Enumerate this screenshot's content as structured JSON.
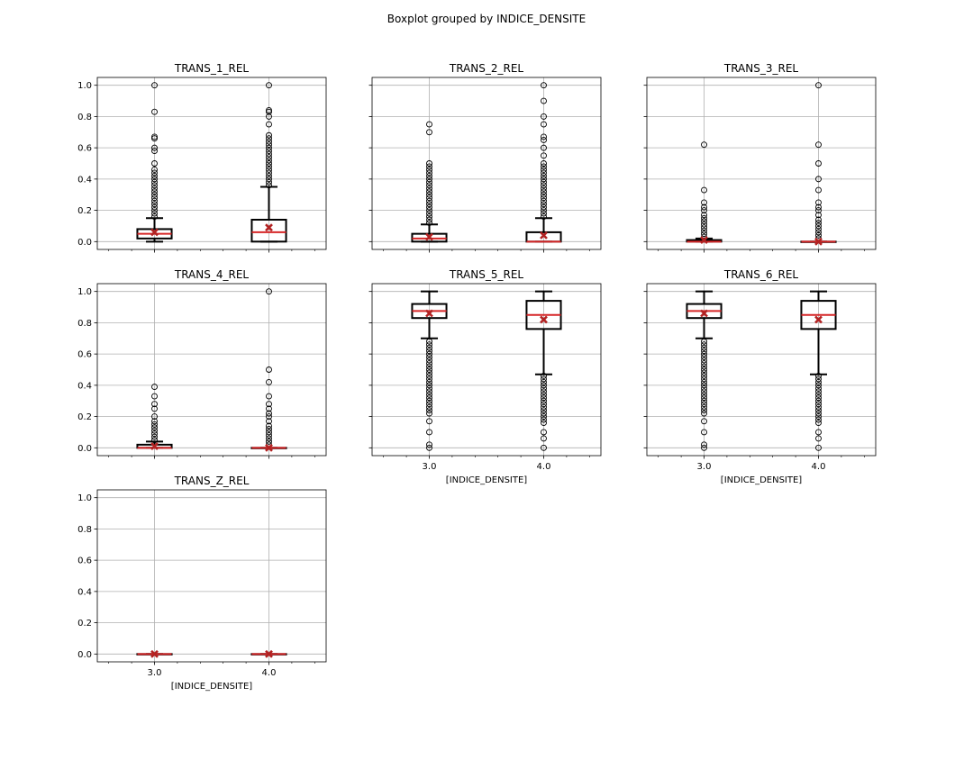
{
  "figure": {
    "title": "Boxplot grouped by INDICE_DENSITE"
  },
  "colors": {
    "box": "#000000",
    "median": "#d62728",
    "mean_marker": "#b22222",
    "grid": "#b0b0b0",
    "background": "#ffffff"
  },
  "chart_data": [
    {
      "type": "box",
      "title": "TRANS_1_REL",
      "xlabel": "",
      "ylabel": "",
      "categories": [
        "3.0",
        "4.0"
      ],
      "ylim": [
        -0.05,
        1.05
      ],
      "yticks": [
        "0.0",
        "0.2",
        "0.4",
        "0.6",
        "0.8",
        "1.0"
      ],
      "show_x_ticklabels": false,
      "grid": true,
      "boxes": [
        {
          "category": "3.0",
          "whisker_low": 0.0,
          "q1": 0.02,
          "median": 0.05,
          "q3": 0.08,
          "whisker_high": 0.15,
          "mean": 0.06,
          "outliers": [
            0.16,
            0.18,
            0.2,
            0.22,
            0.24,
            0.26,
            0.28,
            0.3,
            0.32,
            0.34,
            0.36,
            0.38,
            0.4,
            0.42,
            0.44,
            0.46,
            0.5,
            0.58,
            0.6,
            0.66,
            0.67,
            0.83,
            1.0
          ]
        },
        {
          "category": "4.0",
          "whisker_low": 0.0,
          "q1": 0.0,
          "median": 0.06,
          "q3": 0.14,
          "whisker_high": 0.35,
          "mean": 0.09,
          "outliers": [
            0.36,
            0.38,
            0.4,
            0.42,
            0.44,
            0.46,
            0.48,
            0.5,
            0.52,
            0.54,
            0.56,
            0.58,
            0.6,
            0.62,
            0.64,
            0.66,
            0.68,
            0.75,
            0.8,
            0.83,
            0.84,
            1.0
          ]
        }
      ]
    },
    {
      "type": "box",
      "title": "TRANS_2_REL",
      "xlabel": "",
      "ylabel": "",
      "categories": [
        "3.0",
        "4.0"
      ],
      "ylim": [
        -0.05,
        1.05
      ],
      "yticks": [
        "0.0",
        "0.2",
        "0.4",
        "0.6",
        "0.8",
        "1.0"
      ],
      "show_x_ticklabels": false,
      "grid": true,
      "boxes": [
        {
          "category": "3.0",
          "whisker_low": 0.0,
          "q1": 0.0,
          "median": 0.02,
          "q3": 0.05,
          "whisker_high": 0.11,
          "mean": 0.03,
          "outliers": [
            0.12,
            0.14,
            0.16,
            0.18,
            0.2,
            0.22,
            0.24,
            0.26,
            0.28,
            0.3,
            0.32,
            0.34,
            0.36,
            0.38,
            0.4,
            0.42,
            0.44,
            0.46,
            0.48,
            0.5,
            0.7,
            0.75
          ]
        },
        {
          "category": "4.0",
          "whisker_low": 0.0,
          "q1": 0.0,
          "median": 0.0,
          "q3": 0.06,
          "whisker_high": 0.15,
          "mean": 0.04,
          "outliers": [
            0.16,
            0.18,
            0.2,
            0.22,
            0.24,
            0.26,
            0.28,
            0.3,
            0.32,
            0.34,
            0.36,
            0.38,
            0.4,
            0.42,
            0.44,
            0.46,
            0.48,
            0.5,
            0.55,
            0.6,
            0.65,
            0.67,
            0.75,
            0.8,
            0.9,
            1.0
          ]
        }
      ]
    },
    {
      "type": "box",
      "title": "TRANS_3_REL",
      "xlabel": "",
      "ylabel": "",
      "categories": [
        "3.0",
        "4.0"
      ],
      "ylim": [
        -0.05,
        1.05
      ],
      "yticks": [
        "0.0",
        "0.2",
        "0.4",
        "0.6",
        "0.8",
        "1.0"
      ],
      "show_x_ticklabels": false,
      "grid": true,
      "boxes": [
        {
          "category": "3.0",
          "whisker_low": 0.0,
          "q1": 0.0,
          "median": 0.0,
          "q3": 0.01,
          "whisker_high": 0.02,
          "mean": 0.01,
          "outliers": [
            0.03,
            0.05,
            0.07,
            0.09,
            0.11,
            0.13,
            0.15,
            0.17,
            0.2,
            0.22,
            0.25,
            0.33,
            0.62
          ]
        },
        {
          "category": "4.0",
          "whisker_low": 0.0,
          "q1": 0.0,
          "median": 0.0,
          "q3": 0.0,
          "whisker_high": 0.0,
          "mean": 0.0,
          "outliers": [
            0.02,
            0.04,
            0.06,
            0.08,
            0.1,
            0.12,
            0.14,
            0.17,
            0.2,
            0.22,
            0.25,
            0.33,
            0.4,
            0.5,
            0.62,
            1.0
          ]
        }
      ]
    },
    {
      "type": "box",
      "title": "TRANS_4_REL",
      "xlabel": "",
      "ylabel": "",
      "categories": [
        "3.0",
        "4.0"
      ],
      "ylim": [
        -0.05,
        1.05
      ],
      "yticks": [
        "0.0",
        "0.2",
        "0.4",
        "0.6",
        "0.8",
        "1.0"
      ],
      "show_x_ticklabels": false,
      "grid": true,
      "boxes": [
        {
          "category": "3.0",
          "whisker_low": 0.0,
          "q1": 0.0,
          "median": 0.0,
          "q3": 0.02,
          "whisker_high": 0.04,
          "mean": 0.01,
          "outliers": [
            0.05,
            0.07,
            0.09,
            0.11,
            0.13,
            0.15,
            0.17,
            0.2,
            0.25,
            0.28,
            0.33,
            0.39
          ]
        },
        {
          "category": "4.0",
          "whisker_low": 0.0,
          "q1": 0.0,
          "median": 0.0,
          "q3": 0.0,
          "whisker_high": 0.0,
          "mean": 0.0,
          "outliers": [
            0.02,
            0.04,
            0.06,
            0.08,
            0.1,
            0.12,
            0.14,
            0.17,
            0.2,
            0.22,
            0.25,
            0.28,
            0.33,
            0.42,
            0.5,
            1.0
          ]
        }
      ]
    },
    {
      "type": "box",
      "title": "TRANS_5_REL",
      "xlabel": "[INDICE_DENSITE]",
      "ylabel": "",
      "categories": [
        "3.0",
        "4.0"
      ],
      "ylim": [
        -0.05,
        1.05
      ],
      "yticks": [
        "0.0",
        "0.2",
        "0.4",
        "0.6",
        "0.8",
        "1.0"
      ],
      "show_x_ticklabels": true,
      "grid": true,
      "boxes": [
        {
          "category": "3.0",
          "whisker_low": 0.7,
          "q1": 0.83,
          "median": 0.875,
          "q3": 0.92,
          "whisker_high": 1.0,
          "mean": 0.86,
          "outliers": [
            0.0,
            0.02,
            0.1,
            0.17,
            0.22,
            0.24,
            0.26,
            0.28,
            0.3,
            0.32,
            0.34,
            0.36,
            0.38,
            0.4,
            0.42,
            0.44,
            0.46,
            0.48,
            0.5,
            0.52,
            0.54,
            0.56,
            0.58,
            0.6,
            0.62,
            0.64,
            0.66,
            0.68
          ]
        },
        {
          "category": "4.0",
          "whisker_low": 0.47,
          "q1": 0.76,
          "median": 0.85,
          "q3": 0.94,
          "whisker_high": 1.0,
          "mean": 0.82,
          "outliers": [
            0.0,
            0.06,
            0.1,
            0.16,
            0.18,
            0.2,
            0.22,
            0.24,
            0.26,
            0.28,
            0.3,
            0.32,
            0.34,
            0.36,
            0.38,
            0.4,
            0.42,
            0.44,
            0.46
          ]
        }
      ]
    },
    {
      "type": "box",
      "title": "TRANS_6_REL",
      "xlabel": "[INDICE_DENSITE]",
      "ylabel": "",
      "categories": [
        "3.0",
        "4.0"
      ],
      "ylim": [
        -0.05,
        1.05
      ],
      "yticks": [
        "0.0",
        "0.2",
        "0.4",
        "0.6",
        "0.8",
        "1.0"
      ],
      "show_x_ticklabels": true,
      "grid": true,
      "boxes": [
        {
          "category": "3.0",
          "whisker_low": 0.7,
          "q1": 0.83,
          "median": 0.875,
          "q3": 0.92,
          "whisker_high": 1.0,
          "mean": 0.86,
          "outliers": [
            0.0,
            0.02,
            0.1,
            0.17,
            0.22,
            0.24,
            0.26,
            0.28,
            0.3,
            0.32,
            0.34,
            0.36,
            0.38,
            0.4,
            0.42,
            0.44,
            0.46,
            0.48,
            0.5,
            0.52,
            0.54,
            0.56,
            0.58,
            0.6,
            0.62,
            0.64,
            0.66,
            0.68
          ]
        },
        {
          "category": "4.0",
          "whisker_low": 0.47,
          "q1": 0.76,
          "median": 0.85,
          "q3": 0.94,
          "whisker_high": 1.0,
          "mean": 0.82,
          "outliers": [
            0.0,
            0.06,
            0.1,
            0.16,
            0.18,
            0.2,
            0.22,
            0.24,
            0.26,
            0.28,
            0.3,
            0.32,
            0.34,
            0.36,
            0.38,
            0.4,
            0.42,
            0.44,
            0.46
          ]
        }
      ]
    },
    {
      "type": "box",
      "title": "TRANS_Z_REL",
      "xlabel": "[INDICE_DENSITE]",
      "ylabel": "",
      "categories": [
        "3.0",
        "4.0"
      ],
      "ylim": [
        -0.05,
        1.05
      ],
      "yticks": [
        "0.0",
        "0.2",
        "0.4",
        "0.6",
        "0.8",
        "1.0"
      ],
      "show_x_ticklabels": true,
      "grid": true,
      "boxes": [
        {
          "category": "3.0",
          "whisker_low": 0.0,
          "q1": 0.0,
          "median": 0.0,
          "q3": 0.0,
          "whisker_high": 0.0,
          "mean": 0.0,
          "outliers": []
        },
        {
          "category": "4.0",
          "whisker_low": 0.0,
          "q1": 0.0,
          "median": 0.0,
          "q3": 0.0,
          "whisker_high": 0.0,
          "mean": 0.0,
          "outliers": []
        }
      ]
    }
  ]
}
